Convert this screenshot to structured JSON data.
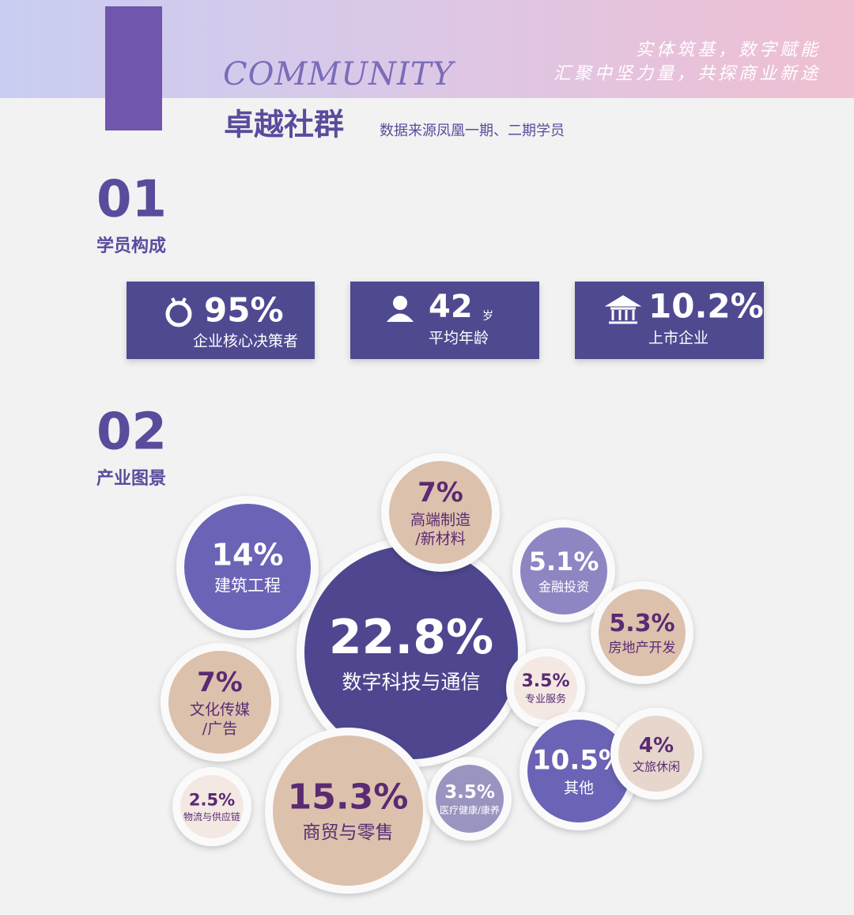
{
  "header": {
    "english": "COMMUNITY",
    "title": "卓越社群",
    "subtitle": "数据来源凤凰一期、二期学员",
    "slogan": [
      "实体筑基，数字赋能",
      "汇聚中坚力量，共探商业新途"
    ]
  },
  "section1": {
    "number": "01",
    "title": "学员构成",
    "stats": [
      {
        "value": "95%",
        "label": "企业核心决策者"
      },
      {
        "value": "42",
        "unit": "岁",
        "label": "平均年龄"
      },
      {
        "value": "10.2%",
        "label": "上市企业"
      }
    ]
  },
  "section2": {
    "number": "02",
    "title": "产业图景",
    "bubbles": [
      {
        "value": "22.8%",
        "label": [
          "数字科技与通信"
        ]
      },
      {
        "value": "14%",
        "label": [
          "建筑工程"
        ]
      },
      {
        "value": "7%",
        "label": [
          "高端制造",
          "/新材料"
        ]
      },
      {
        "value": "5.1%",
        "label": [
          "金融投资"
        ]
      },
      {
        "value": "5.3%",
        "label": [
          "房地产开发"
        ]
      },
      {
        "value": "3.5%",
        "label": [
          "专业服务"
        ]
      },
      {
        "value": "7%",
        "label": [
          "文化传媒",
          "/广告"
        ]
      },
      {
        "value": "10.5%",
        "label": [
          "其他"
        ]
      },
      {
        "value": "4%",
        "label": [
          "文旅休闲"
        ]
      },
      {
        "value": "2.5%",
        "label": [
          "物流与供应链"
        ]
      },
      {
        "value": "15.3%",
        "label": [
          "商贸与零售"
        ]
      },
      {
        "value": "3.5%",
        "label": [
          "医疗健康/康养"
        ]
      }
    ]
  }
}
